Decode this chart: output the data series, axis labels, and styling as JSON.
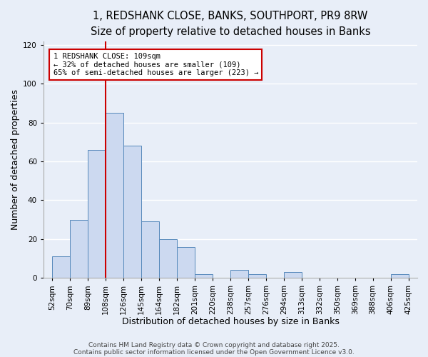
{
  "title1": "1, REDSHANK CLOSE, BANKS, SOUTHPORT, PR9 8RW",
  "title2": "Size of property relative to detached houses in Banks",
  "xlabel": "Distribution of detached houses by size in Banks",
  "ylabel": "Number of detached properties",
  "bin_labels": [
    "52sqm",
    "70sqm",
    "89sqm",
    "108sqm",
    "126sqm",
    "145sqm",
    "164sqm",
    "182sqm",
    "201sqm",
    "220sqm",
    "238sqm",
    "257sqm",
    "276sqm",
    "294sqm",
    "313sqm",
    "332sqm",
    "350sqm",
    "369sqm",
    "388sqm",
    "406sqm",
    "425sqm"
  ],
  "bar_heights": [
    11,
    30,
    66,
    85,
    68,
    29,
    20,
    16,
    2,
    0,
    4,
    2,
    0,
    3,
    0,
    0,
    0,
    0,
    0,
    2
  ],
  "bar_color": "#ccd9f0",
  "bar_edge_color": "#5588bb",
  "vline_x_index": 3,
  "vline_color": "#cc0000",
  "ylim": [
    0,
    122
  ],
  "yticks": [
    0,
    20,
    40,
    60,
    80,
    100,
    120
  ],
  "annotation_title": "1 REDSHANK CLOSE: 109sqm",
  "annotation_line2": "← 32% of detached houses are smaller (109)",
  "annotation_line3": "65% of semi-detached houses are larger (223) →",
  "annotation_box_color": "#ffffff",
  "annotation_box_edge": "#cc0000",
  "footer1": "Contains HM Land Registry data © Crown copyright and database right 2025.",
  "footer2": "Contains public sector information licensed under the Open Government Licence v3.0.",
  "background_color": "#e8eef8",
  "grid_color": "#ffffff",
  "title_fontsize": 10.5,
  "subtitle_fontsize": 9.5,
  "axis_label_fontsize": 9,
  "tick_fontsize": 7.5,
  "footer_fontsize": 6.5
}
